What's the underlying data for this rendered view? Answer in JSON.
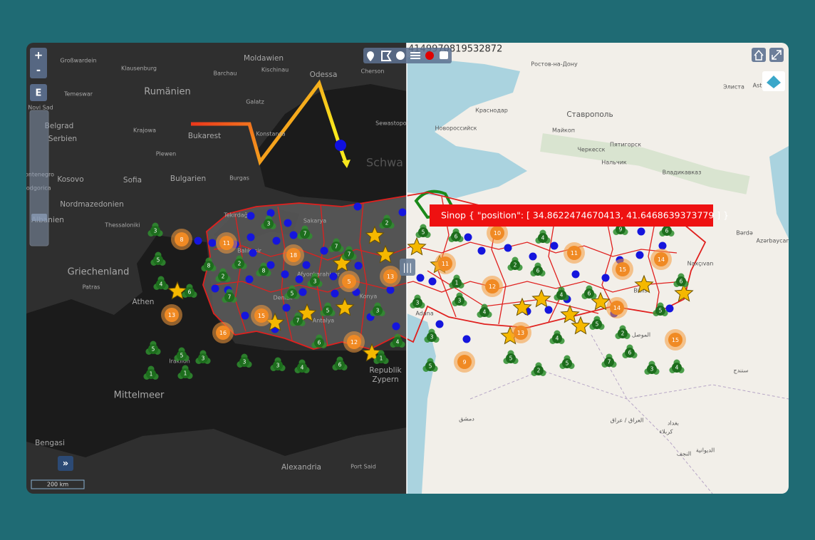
{
  "controls": {
    "zoom_in": "+",
    "zoom_out": "-",
    "extent": "E",
    "expand_panel": "»",
    "swipe_handle": "|||"
  },
  "coordinate_readout": "4149970819532872",
  "tooltip": "Sinop { \"position\": [ 34.8622474670413, 41.6468639373779 ] }",
  "scale_bar": "200 km",
  "left_map_labels": [
    "Großwardein",
    "Klausenburg",
    "Moldawien",
    "Kischinau",
    "Barchau",
    "Odessa",
    "Cherson",
    "Rumänien",
    "Temeswar",
    "Novi Sad",
    "Galatz",
    "Belgrad",
    "Serbien",
    "Krajowa",
    "Bukarest",
    "Konstanza",
    "Sewastopol",
    "Plewen",
    "Schwa",
    "Montenegro",
    "Podgorica",
    "Kosovo",
    "Sofia",
    "Bulgarien",
    "Burgas",
    "Nordmazedonien",
    "Albanien",
    "Thessaloniki",
    "Tekirdağ",
    "Sakarya",
    "Balıkesir",
    "Griechenland",
    "Afyonkarahisar",
    "Patras",
    "Denizli",
    "Konya",
    "Athen",
    "Antalya",
    "Iraklion",
    "Republik",
    "Zypern",
    "Mittelmeer",
    "Bengasi",
    "Alexandria",
    "Port Said"
  ],
  "right_map_labels": [
    "Ростов-на-Дону",
    "Элиста",
    "Краснодар",
    "Ставрополь",
    "Новороссийск",
    "Майкоп",
    "Пятигорск",
    "Черкесск",
    "Нальчик",
    "Владикавказ",
    "Bərdə",
    "Azərbaycan",
    "Naxçıvan",
    "Bitlis",
    "Adana",
    "الموصل",
    "دمشق",
    "العراق / عراق",
    "بغداد",
    "كربلاء",
    "النجف",
    "الديوانية",
    "سنندج",
    "Ast"
  ],
  "green_clusters": [
    3,
    5,
    4,
    6,
    8,
    2,
    2,
    8,
    7,
    3,
    7,
    7,
    7,
    3,
    5,
    7,
    5,
    3,
    2,
    6,
    4,
    5,
    5,
    3,
    1,
    1,
    3,
    3,
    4,
    6,
    1,
    5,
    6,
    4,
    2,
    6,
    1,
    3,
    3,
    4,
    4,
    6,
    5,
    2,
    6,
    4,
    5,
    2,
    5,
    7,
    3,
    4,
    5,
    3,
    6,
    9,
    6,
    5
  ],
  "orange_clusters": [
    8,
    11,
    18,
    5,
    13,
    15,
    16,
    12,
    13,
    10,
    11,
    11,
    15,
    14,
    12,
    13,
    14,
    15,
    9
  ]
}
